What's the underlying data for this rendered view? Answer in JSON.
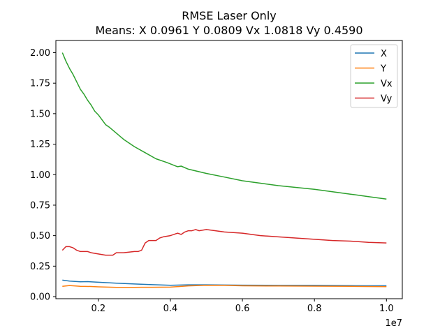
{
  "chart_data": {
    "type": "line",
    "title": "RMSE Laser Only",
    "subtitle": "Means: X 0.0961 Y 0.0809 Vx 1.0818 Vy 0.4590",
    "xlabel": "",
    "ylabel": "",
    "x_offset_label": "1e7",
    "xlim": [
      0.082,
      1.044
    ],
    "ylim": [
      -0.017,
      2.1
    ],
    "x_ticks": [
      0.2,
      0.4,
      0.6,
      0.8,
      1.0
    ],
    "x_tick_labels": [
      "0.2",
      "0.4",
      "0.6",
      "0.8",
      "1.0"
    ],
    "y_ticks": [
      0.0,
      0.25,
      0.5,
      0.75,
      1.0,
      1.25,
      1.5,
      1.75,
      2.0
    ],
    "y_tick_labels": [
      "0.00",
      "0.25",
      "0.50",
      "0.75",
      "1.00",
      "1.25",
      "1.50",
      "1.75",
      "2.00"
    ],
    "grid": false,
    "legend_position": "top-right",
    "series": [
      {
        "name": "X",
        "color": "#1f77b4",
        "points": [
          [
            0.1,
            0.135
          ],
          [
            0.12,
            0.128
          ],
          [
            0.15,
            0.122
          ],
          [
            0.17,
            0.123
          ],
          [
            0.2,
            0.118
          ],
          [
            0.25,
            0.11
          ],
          [
            0.3,
            0.104
          ],
          [
            0.35,
            0.098
          ],
          [
            0.4,
            0.093
          ],
          [
            0.43,
            0.095
          ],
          [
            0.45,
            0.097
          ],
          [
            0.5,
            0.097
          ],
          [
            0.6,
            0.094
          ],
          [
            0.7,
            0.092
          ],
          [
            0.8,
            0.092
          ],
          [
            0.9,
            0.09
          ],
          [
            0.95,
            0.089
          ],
          [
            1.0,
            0.089
          ]
        ]
      },
      {
        "name": "Y",
        "color": "#ff7f0e",
        "points": [
          [
            0.1,
            0.085
          ],
          [
            0.12,
            0.091
          ],
          [
            0.15,
            0.085
          ],
          [
            0.18,
            0.083
          ],
          [
            0.2,
            0.08
          ],
          [
            0.25,
            0.076
          ],
          [
            0.3,
            0.076
          ],
          [
            0.32,
            0.077
          ],
          [
            0.35,
            0.077
          ],
          [
            0.4,
            0.078
          ],
          [
            0.45,
            0.088
          ],
          [
            0.5,
            0.093
          ],
          [
            0.55,
            0.092
          ],
          [
            0.6,
            0.089
          ],
          [
            0.7,
            0.087
          ],
          [
            0.8,
            0.086
          ],
          [
            0.9,
            0.084
          ],
          [
            1.0,
            0.082
          ]
        ]
      },
      {
        "name": "Vx",
        "color": "#2ca02c",
        "points": [
          [
            0.1,
            2.0
          ],
          [
            0.11,
            1.93
          ],
          [
            0.12,
            1.87
          ],
          [
            0.13,
            1.82
          ],
          [
            0.14,
            1.76
          ],
          [
            0.15,
            1.7
          ],
          [
            0.16,
            1.66
          ],
          [
            0.17,
            1.61
          ],
          [
            0.18,
            1.57
          ],
          [
            0.19,
            1.52
          ],
          [
            0.2,
            1.49
          ],
          [
            0.21,
            1.45
          ],
          [
            0.22,
            1.41
          ],
          [
            0.23,
            1.39
          ],
          [
            0.25,
            1.34
          ],
          [
            0.27,
            1.29
          ],
          [
            0.3,
            1.23
          ],
          [
            0.33,
            1.18
          ],
          [
            0.36,
            1.13
          ],
          [
            0.39,
            1.1
          ],
          [
            0.42,
            1.065
          ],
          [
            0.43,
            1.07
          ],
          [
            0.45,
            1.045
          ],
          [
            0.5,
            1.01
          ],
          [
            0.55,
            0.98
          ],
          [
            0.6,
            0.95
          ],
          [
            0.65,
            0.93
          ],
          [
            0.7,
            0.91
          ],
          [
            0.75,
            0.895
          ],
          [
            0.8,
            0.88
          ],
          [
            0.85,
            0.86
          ],
          [
            0.9,
            0.84
          ],
          [
            0.95,
            0.82
          ],
          [
            1.0,
            0.8
          ]
        ]
      },
      {
        "name": "Vy",
        "color": "#d62728",
        "points": [
          [
            0.1,
            0.38
          ],
          [
            0.11,
            0.41
          ],
          [
            0.12,
            0.41
          ],
          [
            0.13,
            0.4
          ],
          [
            0.14,
            0.38
          ],
          [
            0.15,
            0.37
          ],
          [
            0.17,
            0.37
          ],
          [
            0.18,
            0.36
          ],
          [
            0.2,
            0.35
          ],
          [
            0.22,
            0.34
          ],
          [
            0.24,
            0.34
          ],
          [
            0.25,
            0.36
          ],
          [
            0.27,
            0.36
          ],
          [
            0.3,
            0.37
          ],
          [
            0.31,
            0.37
          ],
          [
            0.32,
            0.38
          ],
          [
            0.33,
            0.44
          ],
          [
            0.34,
            0.46
          ],
          [
            0.36,
            0.46
          ],
          [
            0.37,
            0.48
          ],
          [
            0.38,
            0.49
          ],
          [
            0.4,
            0.5
          ],
          [
            0.42,
            0.52
          ],
          [
            0.43,
            0.51
          ],
          [
            0.44,
            0.53
          ],
          [
            0.45,
            0.54
          ],
          [
            0.46,
            0.54
          ],
          [
            0.47,
            0.55
          ],
          [
            0.48,
            0.54
          ],
          [
            0.5,
            0.55
          ],
          [
            0.55,
            0.53
          ],
          [
            0.6,
            0.52
          ],
          [
            0.65,
            0.5
          ],
          [
            0.7,
            0.49
          ],
          [
            0.75,
            0.48
          ],
          [
            0.8,
            0.47
          ],
          [
            0.85,
            0.46
          ],
          [
            0.9,
            0.455
          ],
          [
            0.95,
            0.445
          ],
          [
            1.0,
            0.44
          ]
        ]
      }
    ]
  }
}
